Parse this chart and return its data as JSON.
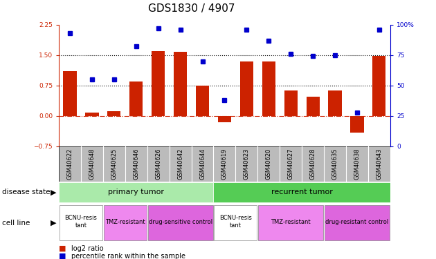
{
  "title": "GDS1830 / 4907",
  "samples": [
    "GSM40622",
    "GSM40648",
    "GSM40625",
    "GSM40646",
    "GSM40626",
    "GSM40642",
    "GSM40644",
    "GSM40619",
    "GSM40623",
    "GSM40620",
    "GSM40627",
    "GSM40628",
    "GSM40635",
    "GSM40638",
    "GSM40643"
  ],
  "log2_ratio": [
    1.1,
    0.08,
    0.12,
    0.85,
    1.6,
    1.58,
    0.75,
    -0.15,
    1.35,
    1.35,
    0.62,
    0.48,
    0.62,
    -0.42,
    1.48
  ],
  "percentile": [
    93,
    55,
    55,
    82,
    97,
    96,
    70,
    38,
    96,
    87,
    76,
    74,
    75,
    28,
    96
  ],
  "ylim_left": [
    -0.75,
    2.25
  ],
  "ylim_right": [
    0,
    100
  ],
  "yticks_left": [
    -0.75,
    0,
    0.75,
    1.5,
    2.25
  ],
  "yticks_right": [
    0,
    25,
    50,
    75,
    100
  ],
  "bar_color": "#cc2200",
  "dot_color": "#0000cc",
  "hline_y_left": [
    0.75,
    1.5
  ],
  "zero_line_color": "#cc2200",
  "hline_color": "black",
  "disease_state_groups": [
    {
      "label": "primary tumor",
      "start": 0,
      "end": 6,
      "color": "#aaeaaa"
    },
    {
      "label": "recurrent tumor",
      "start": 7,
      "end": 14,
      "color": "#55cc55"
    }
  ],
  "cell_line_groups": [
    {
      "label": "BCNU-resis\ntant",
      "start": 0,
      "end": 1,
      "color": "#ffffff"
    },
    {
      "label": "TMZ-resistant",
      "start": 2,
      "end": 3,
      "color": "#ee88ee"
    },
    {
      "label": "drug-sensitive control",
      "start": 4,
      "end": 6,
      "color": "#dd66dd"
    },
    {
      "label": "BCNU-resis\ntant",
      "start": 7,
      "end": 8,
      "color": "#ffffff"
    },
    {
      "label": "TMZ-resistant",
      "start": 9,
      "end": 11,
      "color": "#ee88ee"
    },
    {
      "label": "drug-resistant control",
      "start": 12,
      "end": 14,
      "color": "#dd66dd"
    }
  ],
  "sample_box_color": "#bbbbbb",
  "bg_color": "#ffffff",
  "tick_label_fontsize": 6.5,
  "title_fontsize": 11,
  "legend_bar_label": "log2 ratio",
  "legend_dot_label": "percentile rank within the sample",
  "disease_state_label": "disease state",
  "cell_line_label": "cell line"
}
